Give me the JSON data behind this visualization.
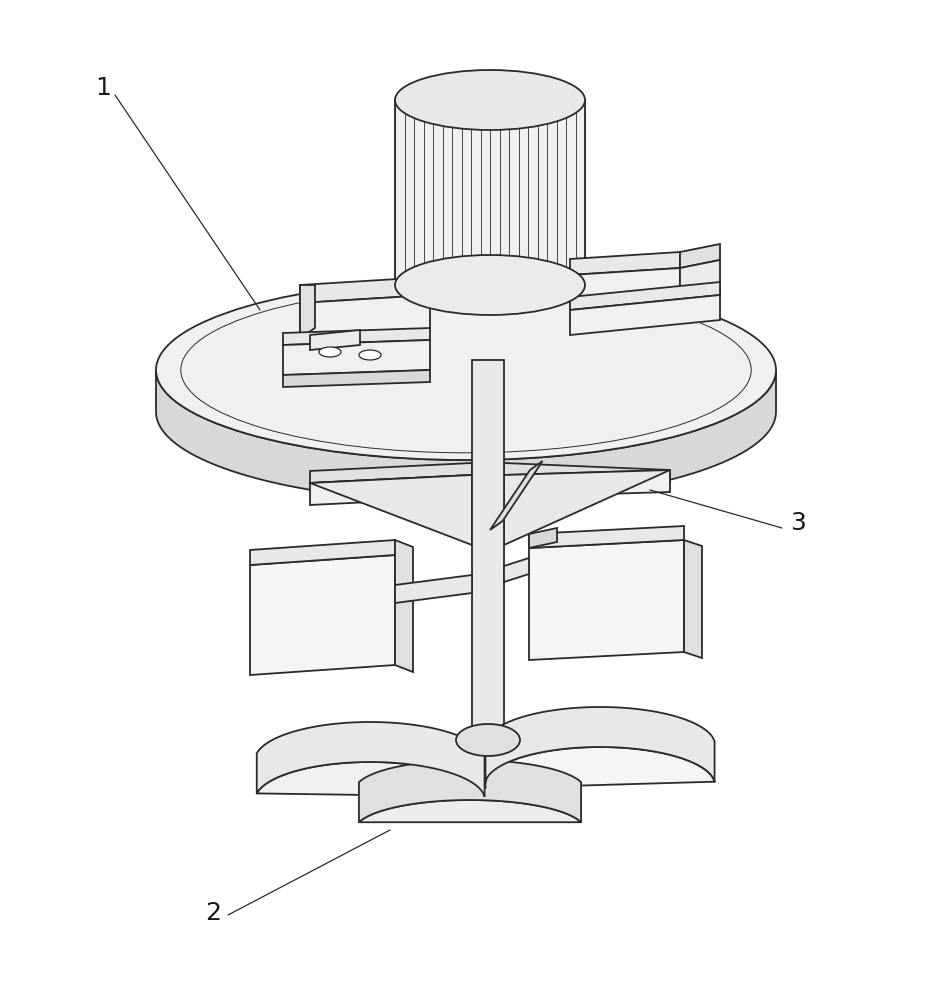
{
  "bg_color": "#ffffff",
  "line_color": "#2a2a2a",
  "line_width": 1.3,
  "fig_width": 9.32,
  "fig_height": 10.0,
  "label_fontsize": 18,
  "dpi": 100
}
